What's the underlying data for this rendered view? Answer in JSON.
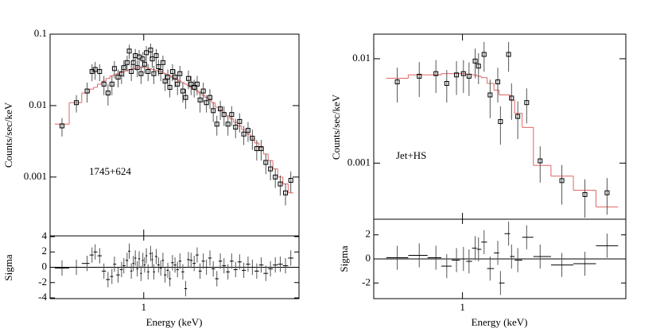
{
  "chart_data": [
    {
      "type": "spectrum",
      "annotation": "1745+624",
      "xlabel": "Energy (keV)",
      "ylabel": "Counts/sec/keV",
      "residual_label": "Sigma",
      "log_x": true,
      "log_y": true,
      "color": "#000000",
      "model_color": "#e06464",
      "xlim": [
        0.35,
        5.7
      ],
      "xticks": [
        1
      ],
      "ylim": [
        0.00015,
        0.1
      ],
      "yticks": [
        0.1,
        0.01,
        0.001
      ],
      "residual_ylim": [
        -4.1,
        4.1
      ],
      "residual_yticks": [
        4,
        2,
        0,
        -2,
        -4
      ],
      "residual_error": 1,
      "x": [
        0.4,
        0.47,
        0.53,
        0.56,
        0.58,
        0.61,
        0.64,
        0.67,
        0.7,
        0.72,
        0.75,
        0.78,
        0.8,
        0.83,
        0.85,
        0.87,
        0.89,
        0.91,
        0.93,
        0.95,
        0.97,
        0.99,
        1.01,
        1.03,
        1.05,
        1.08,
        1.1,
        1.12,
        1.15,
        1.18,
        1.21,
        1.24,
        1.27,
        1.31,
        1.34,
        1.38,
        1.42,
        1.46,
        1.5,
        1.55,
        1.6,
        1.65,
        1.7,
        1.76,
        1.82,
        1.88,
        1.95,
        2.02,
        2.1,
        2.18,
        2.27,
        2.36,
        2.46,
        2.57,
        2.68,
        2.8,
        2.93,
        3.07,
        3.22,
        3.38,
        3.55,
        3.73,
        3.93,
        4.14,
        4.37,
        4.62,
        4.9,
        5.2
      ],
      "values": [
        0.0052,
        0.011,
        0.016,
        0.03,
        0.032,
        0.03,
        0.02,
        0.015,
        0.02,
        0.033,
        0.025,
        0.028,
        0.034,
        0.04,
        0.058,
        0.03,
        0.04,
        0.05,
        0.034,
        0.048,
        0.028,
        0.045,
        0.038,
        0.055,
        0.03,
        0.06,
        0.045,
        0.028,
        0.05,
        0.035,
        0.03,
        0.04,
        0.022,
        0.025,
        0.018,
        0.03,
        0.025,
        0.02,
        0.028,
        0.016,
        0.013,
        0.024,
        0.02,
        0.018,
        0.02,
        0.012,
        0.016,
        0.011,
        0.013,
        0.0085,
        0.0055,
        0.009,
        0.0075,
        0.0055,
        0.0075,
        0.005,
        0.006,
        0.004,
        0.0045,
        0.0035,
        0.0025,
        0.0025,
        0.0016,
        0.0013,
        0.001,
        0.0008,
        0.0006,
        0.0009
      ],
      "errors": [
        0.0015,
        0.003,
        0.005,
        0.008,
        0.009,
        0.008,
        0.006,
        0.005,
        0.006,
        0.009,
        0.007,
        0.008,
        0.009,
        0.01,
        0.013,
        0.008,
        0.01,
        0.012,
        0.009,
        0.012,
        0.008,
        0.011,
        0.01,
        0.013,
        0.008,
        0.014,
        0.011,
        0.008,
        0.012,
        0.009,
        0.008,
        0.01,
        0.006,
        0.007,
        0.005,
        0.008,
        0.007,
        0.006,
        0.008,
        0.005,
        0.004,
        0.007,
        0.006,
        0.005,
        0.006,
        0.004,
        0.005,
        0.003,
        0.004,
        0.0026,
        0.0017,
        0.0027,
        0.0023,
        0.0017,
        0.0023,
        0.0015,
        0.0018,
        0.0012,
        0.0014,
        0.0011,
        0.0008,
        0.0008,
        0.0005,
        0.0004,
        0.0003,
        0.00025,
        0.0002,
        0.0003
      ],
      "model": [
        0.0055,
        0.011,
        0.015,
        0.017,
        0.018,
        0.02,
        0.022,
        0.024,
        0.026,
        0.027,
        0.028,
        0.029,
        0.03,
        0.031,
        0.032,
        0.032,
        0.033,
        0.033,
        0.034,
        0.034,
        0.034,
        0.034,
        0.034,
        0.034,
        0.033,
        0.033,
        0.032,
        0.032,
        0.031,
        0.03,
        0.03,
        0.029,
        0.028,
        0.027,
        0.026,
        0.025,
        0.024,
        0.023,
        0.022,
        0.021,
        0.02,
        0.019,
        0.018,
        0.017,
        0.016,
        0.015,
        0.014,
        0.013,
        0.012,
        0.011,
        0.0095,
        0.0088,
        0.008,
        0.0072,
        0.0065,
        0.0058,
        0.0052,
        0.0046,
        0.004,
        0.0035,
        0.003,
        0.0026,
        0.0021,
        0.0017,
        0.0013,
        0.001,
        0.0008,
        0.0006
      ],
      "residuals": [
        -0.1,
        0.0,
        0.5,
        1.6,
        2.0,
        1.5,
        -0.5,
        -1.6,
        -1.2,
        0.4,
        -1,
        -0.3,
        0.2,
        0.9,
        2.1,
        -0.5,
        0.5,
        1.2,
        -0.2,
        1.1,
        -0.8,
        0.9,
        0.3,
        1.5,
        -0.6,
        1.8,
        1.0,
        -0.6,
        1.4,
        0.3,
        -0.1,
        0.9,
        -1,
        -0.4,
        -1.5,
        0.6,
        0.3,
        -0.3,
        0.8,
        -0.6,
        -2.8,
        1.0,
        0.9,
        0.5,
        1.6,
        -0.5,
        0.8,
        0.0,
        1.2,
        -0.2,
        -1.5,
        0.8,
        0.2,
        -0.6,
        0.8,
        -0.3,
        0.7,
        -0.4,
        0.4,
        0.0,
        -0.5,
        0.3,
        -0.8,
        -0.2,
        0.3,
        0.4,
        0.2,
        1.2
      ]
    },
    {
      "type": "spectrum",
      "annotation": "Jet+HS",
      "xlabel": "Energy (keV)",
      "ylabel": "Counts/sec/keV",
      "residual_label": "Sigma",
      "log_x": true,
      "log_y": true,
      "color": "#000000",
      "model_color": "#e06464",
      "xlim": [
        0.4,
        5.4
      ],
      "xticks": [
        1
      ],
      "ylim": [
        0.00029,
        0.0172
      ],
      "yticks": [
        0.01,
        0.001
      ],
      "residual_ylim": [
        -3.3,
        3.3
      ],
      "residual_yticks": [
        2,
        0,
        -2
      ],
      "residual_error": 1,
      "x": [
        0.51,
        0.64,
        0.76,
        0.85,
        0.94,
        1.01,
        1.07,
        1.14,
        1.18,
        1.25,
        1.33,
        1.44,
        1.48,
        1.61,
        1.66,
        1.77,
        1.94,
        2.23,
        2.79,
        3.54,
        4.45
      ],
      "values": [
        0.006,
        0.0068,
        0.0072,
        0.0058,
        0.007,
        0.0072,
        0.0068,
        0.0095,
        0.0085,
        0.011,
        0.0045,
        0.006,
        0.0025,
        0.011,
        0.0042,
        0.0028,
        0.0038,
        0.00105,
        0.00068,
        0.0005,
        0.00052
      ],
      "errors": [
        0.0022,
        0.0025,
        0.0025,
        0.002,
        0.0025,
        0.0025,
        0.0024,
        0.003,
        0.0028,
        0.0035,
        0.0018,
        0.0022,
        0.001,
        0.0035,
        0.0016,
        0.0011,
        0.0014,
        0.0004,
        0.00028,
        0.0002,
        0.0002
      ],
      "model": [
        0.0065,
        0.007,
        0.007,
        0.0072,
        0.0072,
        0.0072,
        0.0071,
        0.007,
        0.0068,
        0.0066,
        0.0058,
        0.005,
        0.0045,
        0.0045,
        0.004,
        0.003,
        0.0022,
        0.00095,
        0.00075,
        0.00055,
        0.00038
      ],
      "residuals": [
        0.1,
        0.3,
        0.1,
        -0.6,
        -0.1,
        0.0,
        -0.2,
        0.9,
        0.8,
        1.4,
        -0.8,
        0.5,
        -2.0,
        2.1,
        0.2,
        -0.1,
        1.8,
        0.2,
        -0.5,
        -0.4,
        1.1
      ]
    }
  ]
}
